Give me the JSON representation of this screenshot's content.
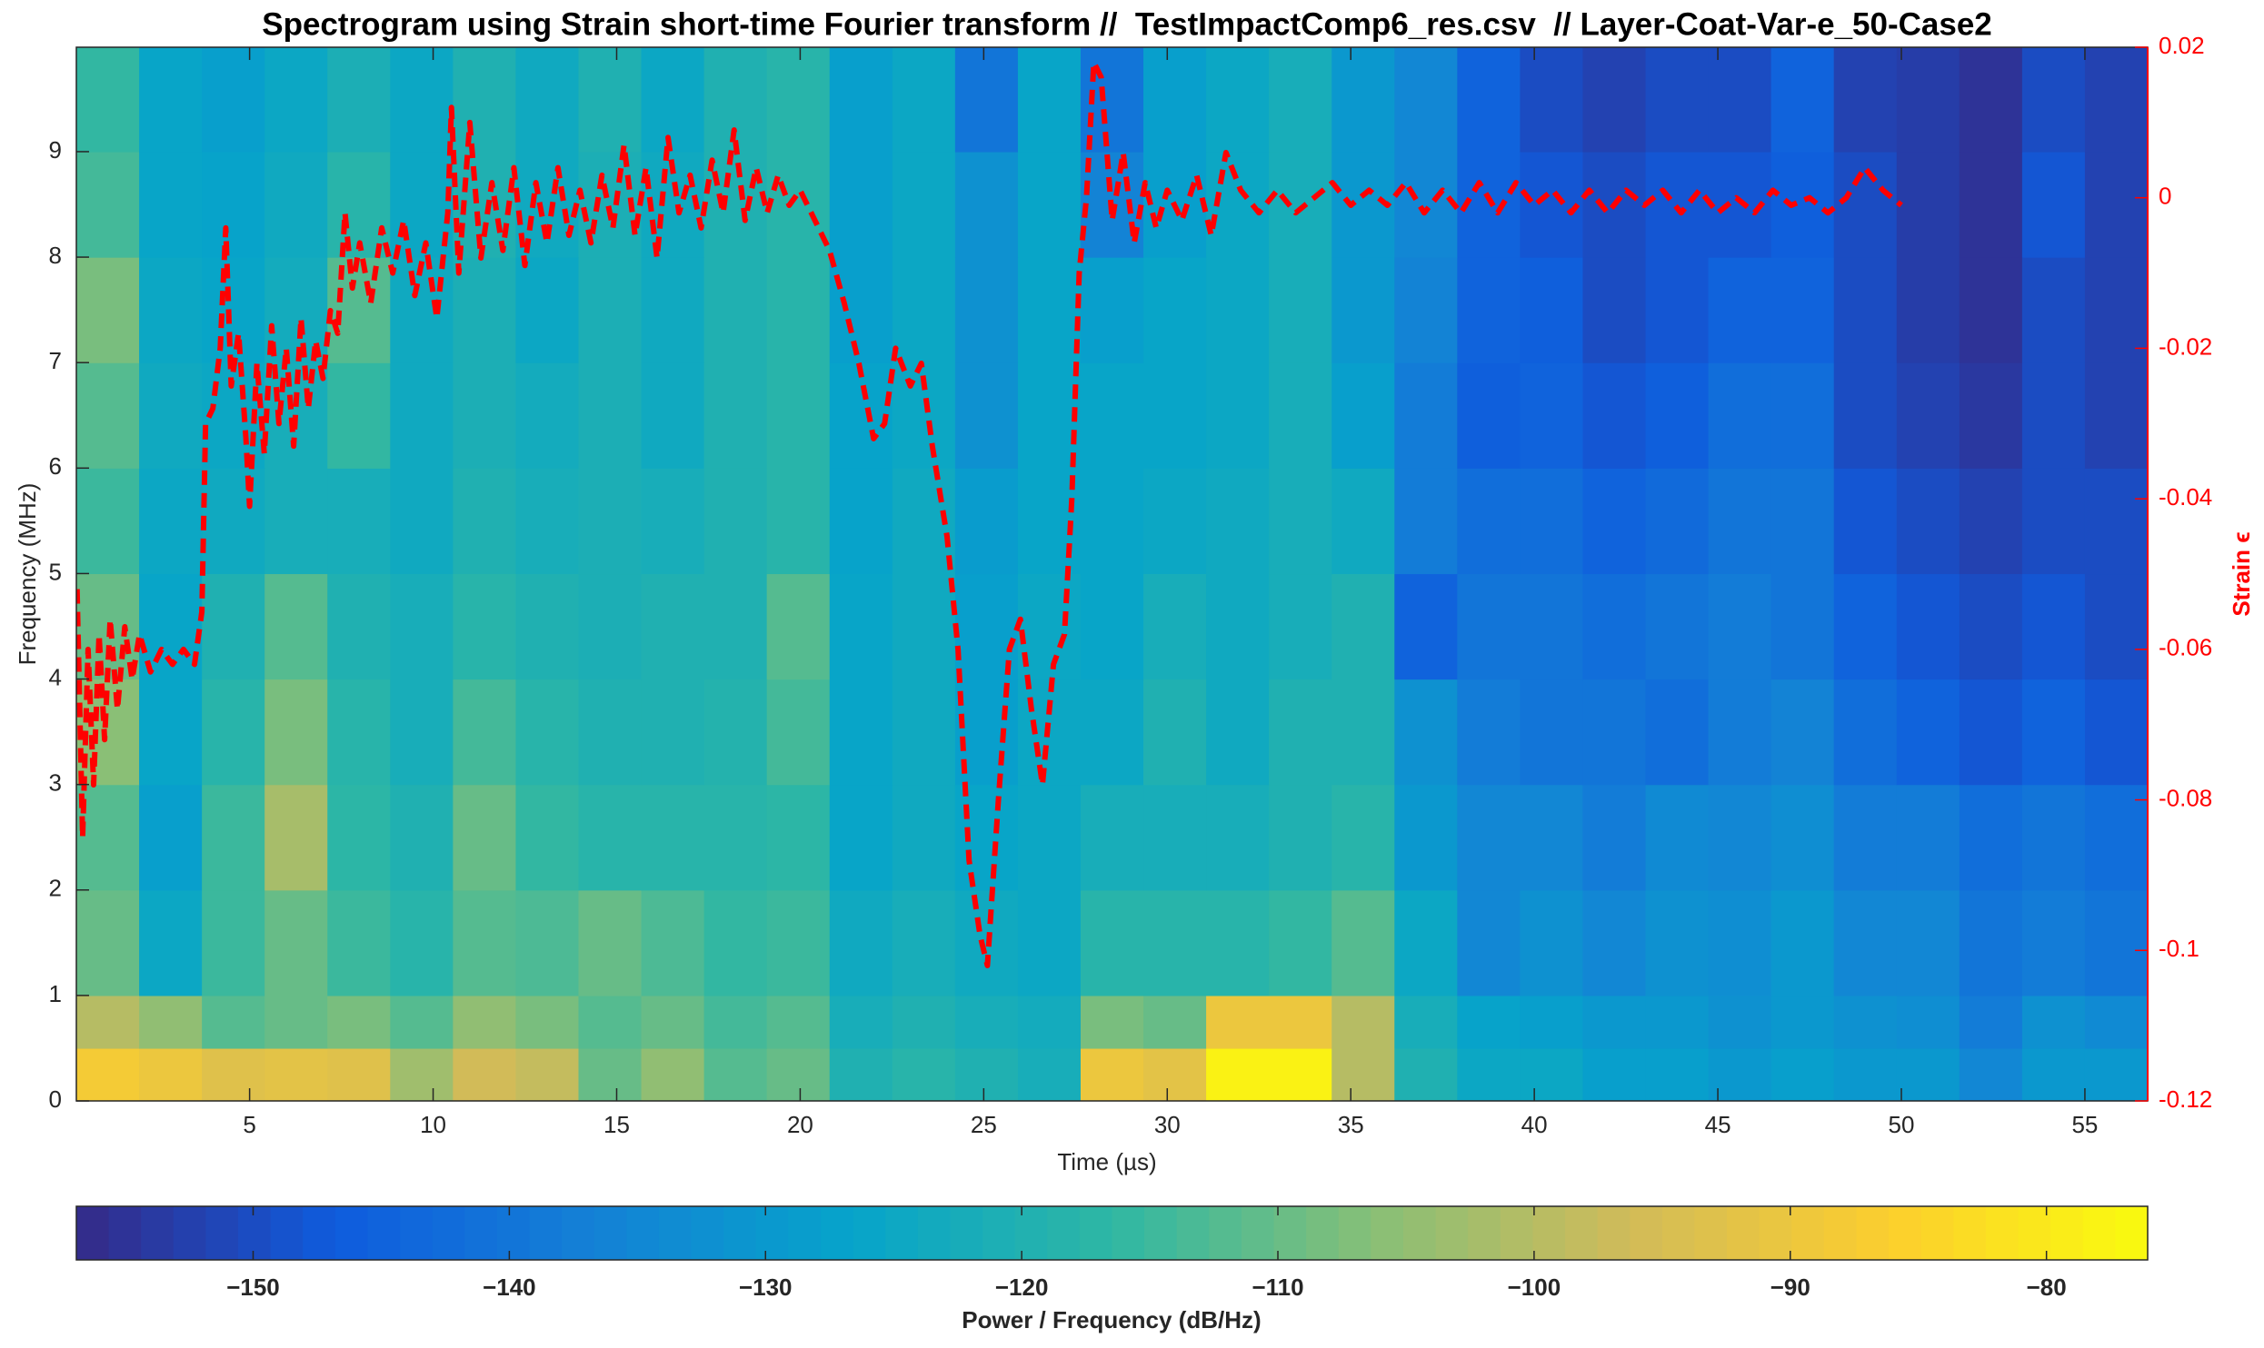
{
  "chart_data": {
    "type": "heatmap",
    "title": "Spectrogram using Strain short-time Fourier transform //  TestImpactComp6_res.csv  // Layer-Coat-Var-e_50-Case2",
    "xlabel": "Time (µs)",
    "ylabel": "Frequency (MHz)",
    "y2label": "Strain ϵ",
    "xlim": [
      0.28,
      56.71
    ],
    "xticks": [
      5,
      10,
      15,
      20,
      25,
      30,
      35,
      40,
      45,
      50,
      55
    ],
    "ylim": [
      0,
      9.99
    ],
    "yticks": [
      0,
      1,
      2,
      3,
      4,
      5,
      6,
      7,
      8,
      9
    ],
    "y2lim": [
      -0.12,
      0.02
    ],
    "y2ticks": [
      -0.12,
      -0.1,
      -0.08,
      -0.06,
      -0.04,
      -0.02,
      0,
      0.02
    ],
    "y2color": "#ff0000",
    "colormap": "parula",
    "clim": [
      -156.9,
      -76.05
    ],
    "colorbar": {
      "label": "Power / Frequency (dB/Hz)",
      "ticks": [
        {
          "value": -150,
          "label": "−150"
        },
        {
          "value": -140,
          "label": "−140"
        },
        {
          "value": -130,
          "label": "−130"
        },
        {
          "value": -120,
          "label": "−120"
        },
        {
          "value": -110,
          "label": "−110"
        },
        {
          "value": -100,
          "label": "−100"
        },
        {
          "value": -90,
          "label": "−90"
        },
        {
          "value": -80,
          "label": "−80"
        }
      ]
    },
    "xbins": [
      0.28,
      1.99,
      3.7,
      5.41,
      7.12,
      8.83,
      10.54,
      12.25,
      13.96,
      15.67,
      17.38,
      19.09,
      20.8,
      22.51,
      24.22,
      25.93,
      27.64,
      29.35,
      31.06,
      32.77,
      34.48,
      36.19,
      37.9,
      39.61,
      41.32,
      43.03,
      44.74,
      46.45,
      48.16,
      49.87,
      51.58,
      53.29,
      55.0,
      56.71
    ],
    "ybins": [
      0,
      0.5,
      1,
      2,
      3,
      4,
      5,
      6,
      7,
      8,
      9,
      9.99
    ],
    "z": [
      [
        -88,
        -90,
        -93,
        -92,
        -93,
        -103,
        -96,
        -98,
        -110,
        -105,
        -112,
        -110,
        -120,
        -118,
        -120,
        -122,
        -90,
        -92,
        -78,
        -78,
        -100,
        -120,
        -125,
        -125,
        -128,
        -128,
        -130,
        -128,
        -130,
        -130,
        -135,
        -130,
        -130
      ],
      [
        -100,
        -105,
        -112,
        -110,
        -108,
        -112,
        -105,
        -108,
        -112,
        -110,
        -114,
        -112,
        -122,
        -120,
        -122,
        -123,
        -108,
        -110,
        -90,
        -90,
        -100,
        -122,
        -127,
        -128,
        -130,
        -130,
        -132,
        -130,
        -132,
        -133,
        -138,
        -132,
        -134
      ],
      [
        -110,
        -125,
        -115,
        -110,
        -115,
        -118,
        -112,
        -113,
        -110,
        -113,
        -116,
        -115,
        -124,
        -122,
        -124,
        -125,
        -118,
        -118,
        -118,
        -116,
        -112,
        -125,
        -135,
        -132,
        -135,
        -132,
        -133,
        -130,
        -135,
        -135,
        -140,
        -138,
        -140
      ],
      [
        -112,
        -128,
        -115,
        -102,
        -117,
        -120,
        -110,
        -116,
        -118,
        -118,
        -118,
        -117,
        -126,
        -124,
        -126,
        -125,
        -122,
        -122,
        -122,
        -120,
        -118,
        -130,
        -135,
        -135,
        -138,
        -134,
        -135,
        -133,
        -138,
        -138,
        -142,
        -140,
        -142
      ],
      [
        -106,
        -126,
        -118,
        -108,
        -118,
        -122,
        -114,
        -118,
        -120,
        -120,
        -119,
        -114,
        -126,
        -124,
        -128,
        -125,
        -125,
        -120,
        -124,
        -120,
        -120,
        -132,
        -138,
        -140,
        -140,
        -142,
        -138,
        -136,
        -142,
        -145,
        -148,
        -145,
        -148
      ],
      [
        -110,
        -126,
        -120,
        -112,
        -120,
        -122,
        -118,
        -120,
        -121,
        -120,
        -120,
        -112,
        -126,
        -124,
        -128,
        -125,
        -126,
        -122,
        -124,
        -122,
        -120,
        -145,
        -140,
        -140,
        -142,
        -140,
        -138,
        -140,
        -145,
        -148,
        -150,
        -148,
        -150
      ],
      [
        -115,
        -125,
        -124,
        -122,
        -122,
        -124,
        -120,
        -122,
        -121,
        -122,
        -120,
        -118,
        -127,
        -124,
        -129,
        -126,
        -126,
        -125,
        -124,
        -122,
        -124,
        -138,
        -142,
        -142,
        -145,
        -143,
        -140,
        -140,
        -148,
        -150,
        -152,
        -150,
        -150
      ],
      [
        -112,
        -124,
        -125,
        -122,
        -116,
        -124,
        -121,
        -123,
        -121,
        -124,
        -120,
        -118,
        -127,
        -125,
        -132,
        -126,
        -126,
        -126,
        -125,
        -122,
        -128,
        -138,
        -146,
        -145,
        -148,
        -146,
        -142,
        -142,
        -150,
        -152,
        -154,
        -150,
        -152
      ],
      [
        -108,
        -125,
        -126,
        -123,
        -112,
        -124,
        -121,
        -125,
        -121,
        -124,
        -120,
        -118,
        -128,
        -125,
        -132,
        -126,
        -128,
        -126,
        -125,
        -122,
        -130,
        -136,
        -145,
        -146,
        -150,
        -148,
        -145,
        -145,
        -150,
        -153,
        -155,
        -150,
        -152
      ],
      [
        -114,
        -126,
        -127,
        -124,
        -118,
        -125,
        -120,
        -124,
        -121,
        -124,
        -120,
        -118,
        -128,
        -125,
        -132,
        -126,
        -136,
        -128,
        -125,
        -122,
        -130,
        -135,
        -145,
        -148,
        -150,
        -148,
        -148,
        -146,
        -150,
        -153,
        -155,
        -148,
        -152
      ],
      [
        -116,
        -126,
        -128,
        -125,
        -121,
        -125,
        -120,
        -124,
        -120,
        -125,
        -120,
        -118,
        -128,
        -125,
        -140,
        -126,
        -140,
        -128,
        -125,
        -122,
        -130,
        -135,
        -145,
        -150,
        -152,
        -150,
        -150,
        -145,
        -152,
        -153,
        -155,
        -150,
        -152
      ]
    ],
    "line": {
      "axis": "y2",
      "color": "#ff0000",
      "dashed": true,
      "x": [
        0.3,
        0.45,
        0.6,
        0.75,
        0.9,
        1.05,
        1.2,
        1.4,
        1.6,
        1.8,
        2.0,
        2.3,
        2.6,
        2.9,
        3.2,
        3.5,
        3.7,
        3.8,
        4.0,
        4.2,
        4.35,
        4.5,
        4.7,
        4.9,
        5.0,
        5.2,
        5.4,
        5.6,
        5.8,
        6.0,
        6.2,
        6.4,
        6.6,
        6.8,
        7.0,
        7.2,
        7.4,
        7.6,
        7.8,
        8.0,
        8.3,
        8.6,
        8.9,
        9.2,
        9.5,
        9.8,
        10.1,
        10.4,
        10.5,
        10.7,
        11.0,
        11.3,
        11.6,
        11.9,
        12.2,
        12.5,
        12.8,
        13.1,
        13.4,
        13.7,
        14.0,
        14.3,
        14.6,
        14.9,
        15.2,
        15.5,
        15.8,
        16.1,
        16.4,
        16.7,
        17.0,
        17.3,
        17.6,
        17.9,
        18.2,
        18.5,
        18.8,
        19.1,
        19.4,
        19.7,
        20.0,
        20.4,
        20.8,
        21.2,
        21.6,
        22.0,
        22.3,
        22.6,
        23.0,
        23.3,
        23.6,
        24.0,
        24.3,
        24.6,
        24.9,
        25.1,
        25.4,
        25.7,
        26.0,
        26.3,
        26.6,
        26.9,
        27.2,
        27.4,
        27.6,
        27.8,
        28.0,
        28.2,
        28.5,
        28.8,
        29.1,
        29.4,
        29.7,
        30.0,
        30.4,
        30.8,
        31.2,
        31.6,
        32.0,
        32.5,
        33.0,
        33.5,
        34.0,
        34.5,
        35.0,
        35.5,
        36.0,
        36.5,
        37.0,
        37.5,
        38.0,
        38.5,
        39.0,
        39.5,
        40.0,
        40.5,
        41.0,
        41.5,
        42.0,
        42.5,
        43.0,
        43.5,
        44.0,
        44.5,
        45.0,
        45.5,
        46.0,
        46.5,
        47.0,
        47.5,
        48.0,
        48.5,
        49.0,
        49.5,
        50.0
      ],
      "values": [
        -0.052,
        -0.085,
        -0.06,
        -0.078,
        -0.058,
        -0.072,
        -0.056,
        -0.068,
        -0.057,
        -0.064,
        -0.058,
        -0.063,
        -0.06,
        -0.062,
        -0.06,
        -0.062,
        -0.055,
        -0.03,
        -0.028,
        -0.02,
        -0.004,
        -0.025,
        -0.018,
        -0.032,
        -0.041,
        -0.022,
        -0.034,
        -0.017,
        -0.03,
        -0.02,
        -0.033,
        -0.016,
        -0.028,
        -0.019,
        -0.024,
        -0.015,
        -0.018,
        -0.002,
        -0.012,
        -0.006,
        -0.014,
        -0.004,
        -0.01,
        -0.003,
        -0.013,
        -0.006,
        -0.016,
        -0.002,
        0.012,
        -0.01,
        0.01,
        -0.008,
        0.002,
        -0.007,
        0.004,
        -0.009,
        0.002,
        -0.006,
        0.004,
        -0.005,
        0.001,
        -0.006,
        0.003,
        -0.004,
        0.007,
        -0.005,
        0.004,
        -0.008,
        0.008,
        -0.002,
        0.003,
        -0.004,
        0.005,
        -0.002,
        0.009,
        -0.003,
        0.004,
        -0.002,
        0.003,
        -0.001,
        0.001,
        -0.003,
        -0.007,
        -0.014,
        -0.022,
        -0.032,
        -0.03,
        -0.02,
        -0.025,
        -0.022,
        -0.033,
        -0.045,
        -0.06,
        -0.088,
        -0.098,
        -0.102,
        -0.08,
        -0.06,
        -0.056,
        -0.068,
        -0.078,
        -0.062,
        -0.058,
        -0.04,
        -0.01,
        0.0,
        0.018,
        0.016,
        -0.003,
        0.006,
        -0.006,
        0.002,
        -0.004,
        0.001,
        -0.003,
        0.003,
        -0.005,
        0.006,
        0.001,
        -0.002,
        0.001,
        -0.002,
        0.0,
        0.002,
        -0.001,
        0.001,
        -0.001,
        0.002,
        -0.002,
        0.001,
        -0.002,
        0.002,
        -0.002,
        0.002,
        -0.001,
        0.001,
        -0.002,
        0.001,
        -0.002,
        0.001,
        -0.001,
        0.001,
        -0.002,
        0.001,
        -0.002,
        0.0,
        -0.002,
        0.001,
        -0.001,
        0.0,
        -0.002,
        0.0,
        0.004,
        0.001,
        -0.001
      ]
    }
  }
}
